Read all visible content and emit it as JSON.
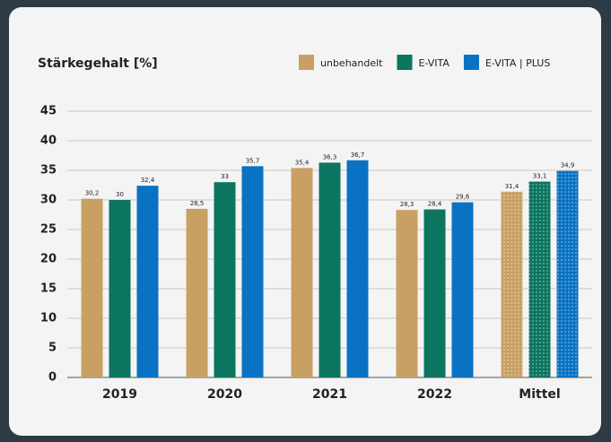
{
  "chart_data": {
    "type": "bar",
    "title": "Stärkegehalt [%]",
    "categories": [
      "2019",
      "2020",
      "2021",
      "2022",
      "Mittel"
    ],
    "series": [
      {
        "name": "unbehandelt",
        "color": "#c9a063",
        "values": [
          30.2,
          28.5,
          35.4,
          28.3,
          31.4
        ],
        "value_labels": [
          "30,2",
          "28,5",
          "35,4",
          "28,3",
          "31,4"
        ]
      },
      {
        "name": "E-VITA",
        "color": "#0b7560",
        "values": [
          30,
          33,
          36.3,
          28.4,
          33.1
        ],
        "value_labels": [
          "30",
          "33",
          "36,3",
          "28,4",
          "33,1"
        ]
      },
      {
        "name": "E-VITA | PLUS",
        "color": "#0a72c2",
        "values": [
          32.4,
          35.7,
          36.7,
          29.6,
          34.9
        ],
        "value_labels": [
          "32,4",
          "35,7",
          "36,7",
          "29,6",
          "34,9"
        ]
      }
    ],
    "dotted": [
      false,
      false,
      false,
      false,
      true
    ],
    "ylim": [
      0,
      45
    ],
    "yticks": [
      0,
      5,
      10,
      15,
      20,
      25,
      30,
      35,
      40,
      45
    ],
    "grid": true,
    "legend": "top-right"
  }
}
